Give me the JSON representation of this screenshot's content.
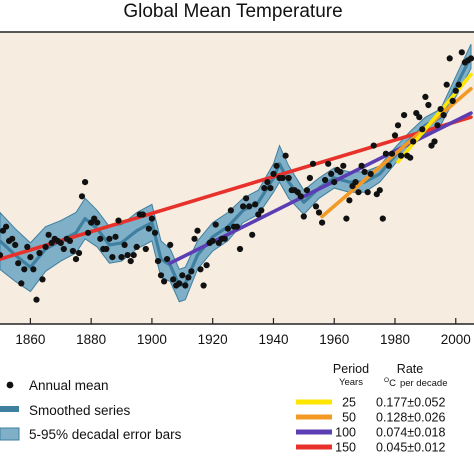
{
  "chart_data": {
    "type": "line",
    "title": "Global Mean Temperature",
    "xlabel": "",
    "ylabel": "",
    "xlim": [
      1850,
      2006
    ],
    "ylim": [
      -0.72,
      0.72
    ],
    "x_ticks": [
      1860,
      1880,
      1900,
      1920,
      1940,
      1960,
      1980,
      2000
    ],
    "x_tick_labels": [
      "1860",
      "1880",
      "1900",
      "1920",
      "1940",
      "1960",
      "1980",
      "2000"
    ],
    "grid": false,
    "background_color": "#f6ecdf",
    "legend": {
      "annual": "Annual mean",
      "smoothed": "Smoothed series",
      "errorbars": "5-95% decadal error bars"
    },
    "rates_table": {
      "period_header": "Period",
      "period_unit": "Years",
      "rate_header": "Rate",
      "rate_unit_sup": "O",
      "rate_unit_c": "C",
      "rate_unit_rest": "per decade",
      "rows": [
        {
          "period": "25",
          "rate": "0.177±0.052",
          "color": "#ffe600"
        },
        {
          "period": "50",
          "rate": "0.128±0.026",
          "color": "#f39a25"
        },
        {
          "period": "100",
          "rate": "0.074±0.018",
          "color": "#5b3db4"
        },
        {
          "period": "150",
          "rate": "0.045±0.012",
          "color": "#e8312a"
        }
      ]
    },
    "colors": {
      "band": "#7fb0c8",
      "band_edge": "#3f7fa0",
      "smooth": "#3f7fa0",
      "points": "#111111"
    },
    "series": [
      {
        "name": "Annual mean",
        "x": [
          1850,
          1851,
          1852,
          1853,
          1854,
          1855,
          1856,
          1857,
          1858,
          1859,
          1860,
          1861,
          1862,
          1863,
          1864,
          1865,
          1866,
          1867,
          1868,
          1869,
          1870,
          1871,
          1872,
          1873,
          1874,
          1875,
          1876,
          1877,
          1878,
          1879,
          1880,
          1881,
          1882,
          1883,
          1884,
          1885,
          1886,
          1887,
          1888,
          1889,
          1890,
          1891,
          1892,
          1893,
          1894,
          1895,
          1896,
          1897,
          1898,
          1899,
          1900,
          1901,
          1902,
          1903,
          1904,
          1905,
          1906,
          1907,
          1908,
          1909,
          1910,
          1911,
          1912,
          1913,
          1914,
          1915,
          1916,
          1917,
          1918,
          1919,
          1920,
          1921,
          1922,
          1923,
          1924,
          1925,
          1926,
          1927,
          1928,
          1929,
          1930,
          1931,
          1932,
          1933,
          1934,
          1935,
          1936,
          1937,
          1938,
          1939,
          1940,
          1941,
          1942,
          1943,
          1944,
          1945,
          1946,
          1947,
          1948,
          1949,
          1950,
          1951,
          1952,
          1953,
          1954,
          1955,
          1956,
          1957,
          1958,
          1959,
          1960,
          1961,
          1962,
          1963,
          1964,
          1965,
          1966,
          1967,
          1968,
          1969,
          1970,
          1971,
          1972,
          1973,
          1974,
          1975,
          1976,
          1977,
          1978,
          1979,
          1980,
          1981,
          1982,
          1983,
          1984,
          1985,
          1986,
          1987,
          1988,
          1989,
          1990,
          1991,
          1992,
          1993,
          1994,
          1995,
          1996,
          1997,
          1998,
          1999,
          2000,
          2001,
          2002,
          2003,
          2004,
          2005
        ],
        "values": [
          -0.38,
          -0.26,
          -0.24,
          -0.31,
          -0.3,
          -0.33,
          -0.42,
          -0.52,
          -0.45,
          -0.34,
          -0.39,
          -0.45,
          -0.6,
          -0.37,
          -0.5,
          -0.34,
          -0.28,
          -0.32,
          -0.3,
          -0.31,
          -0.32,
          -0.35,
          -0.3,
          -0.31,
          -0.36,
          -0.4,
          -0.37,
          -0.09,
          -0.02,
          -0.27,
          -0.22,
          -0.2,
          -0.22,
          -0.3,
          -0.35,
          -0.35,
          -0.3,
          -0.39,
          -0.29,
          -0.21,
          -0.39,
          -0.33,
          -0.38,
          -0.41,
          -0.38,
          -0.34,
          -0.18,
          -0.18,
          -0.35,
          -0.25,
          -0.2,
          -0.27,
          -0.41,
          -0.48,
          -0.51,
          -0.4,
          -0.33,
          -0.5,
          -0.53,
          -0.52,
          -0.48,
          -0.53,
          -0.49,
          -0.46,
          -0.3,
          -0.26,
          -0.45,
          -0.53,
          -0.43,
          -0.32,
          -0.31,
          -0.23,
          -0.32,
          -0.3,
          -0.3,
          -0.25,
          -0.16,
          -0.24,
          -0.24,
          -0.35,
          -0.14,
          -0.1,
          -0.14,
          -0.28,
          -0.13,
          -0.18,
          -0.16,
          -0.05,
          -0.02,
          -0.05,
          0.02,
          0.06,
          0.0,
          0.0,
          0.11,
          0.0,
          -0.06,
          -0.06,
          -0.07,
          -0.09,
          -0.19,
          -0.06,
          0.0,
          0.07,
          -0.14,
          -0.17,
          -0.22,
          -0.01,
          0.07,
          0.02,
          -0.02,
          0.04,
          0.03,
          0.06,
          -0.2,
          -0.11,
          -0.04,
          -0.02,
          -0.07,
          0.06,
          0.03,
          -0.07,
          0.02,
          0.16,
          -0.08,
          -0.06,
          -0.2,
          0.12,
          0.06,
          0.12,
          0.21,
          0.26,
          0.11,
          0.31,
          0.11,
          0.1,
          0.18,
          0.32,
          0.3,
          0.24,
          0.4,
          0.36,
          0.16,
          0.18,
          0.26,
          0.34,
          0.31,
          0.46,
          0.59,
          0.38,
          0.43,
          0.46,
          0.62,
          0.57,
          0.58,
          0.59
        ]
      },
      {
        "name": "Smoothed series",
        "x": [
          1850,
          1855,
          1860,
          1865,
          1870,
          1875,
          1878,
          1882,
          1886,
          1890,
          1895,
          1900,
          1903,
          1906,
          1909,
          1911,
          1915,
          1920,
          1925,
          1930,
          1935,
          1940,
          1942,
          1945,
          1950,
          1955,
          1960,
          1965,
          1970,
          1975,
          1980,
          1985,
          1990,
          1995,
          2000,
          2005
        ],
        "values": [
          -0.31,
          -0.38,
          -0.44,
          -0.35,
          -0.31,
          -0.27,
          -0.2,
          -0.25,
          -0.33,
          -0.32,
          -0.26,
          -0.22,
          -0.4,
          -0.43,
          -0.53,
          -0.52,
          -0.38,
          -0.29,
          -0.24,
          -0.16,
          -0.12,
          0.0,
          0.07,
          -0.02,
          -0.12,
          -0.05,
          0.0,
          -0.02,
          -0.02,
          0.02,
          0.11,
          0.19,
          0.26,
          0.3,
          0.45,
          0.6
        ],
        "band_halfwidth": [
          0.14,
          0.13,
          0.12,
          0.11,
          0.1,
          0.1,
          0.1,
          0.09,
          0.09,
          0.09,
          0.09,
          0.09,
          0.09,
          0.08,
          0.08,
          0.08,
          0.07,
          0.07,
          0.07,
          0.06,
          0.06,
          0.07,
          0.09,
          0.08,
          0.06,
          0.05,
          0.05,
          0.05,
          0.05,
          0.04,
          0.04,
          0.04,
          0.04,
          0.04,
          0.05,
          0.06
        ]
      }
    ],
    "trend_lines": [
      {
        "period": "150",
        "x": [
          1850,
          2005
        ],
        "values": [
          -0.4,
          0.3
        ]
      },
      {
        "period": "100",
        "x": [
          1906,
          2005
        ],
        "values": [
          -0.42,
          0.32
        ]
      },
      {
        "period": "50",
        "x": [
          1956,
          2005
        ],
        "values": [
          -0.19,
          0.44
        ]
      },
      {
        "period": "25",
        "x": [
          1981,
          2005
        ],
        "values": [
          0.08,
          0.51
        ]
      }
    ]
  }
}
